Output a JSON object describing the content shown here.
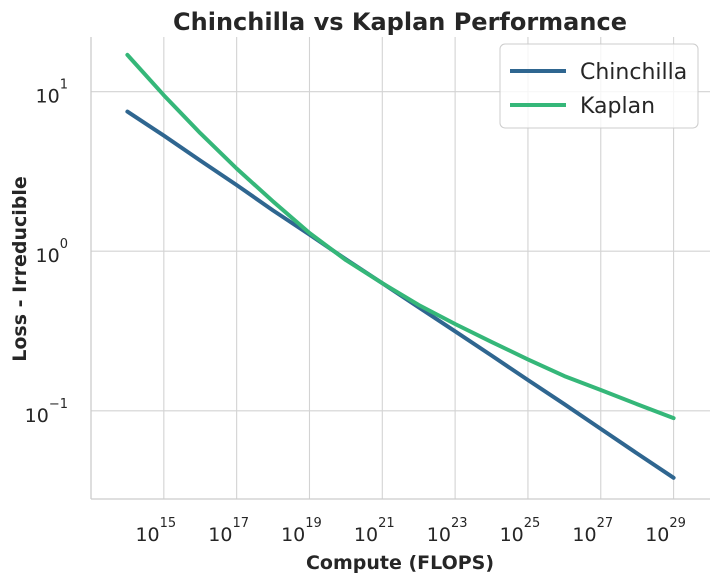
{
  "chart_data": {
    "type": "line",
    "title": "Chinchilla vs Kaplan Performance",
    "xlabel": "Compute (FLOPS)",
    "ylabel": "Loss - Irreducible",
    "x_scale": "log",
    "y_scale": "log",
    "xlim": [
      10000000000000.0,
      1e+30
    ],
    "ylim": [
      0.028,
      22
    ],
    "grid": true,
    "legend_position": "top-right",
    "x_ticks": [
      {
        "base": "10",
        "exp": "15",
        "value": 1000000000000000.0
      },
      {
        "base": "10",
        "exp": "17",
        "value": 1e+17
      },
      {
        "base": "10",
        "exp": "19",
        "value": 1e+19
      },
      {
        "base": "10",
        "exp": "21",
        "value": 1e+21
      },
      {
        "base": "10",
        "exp": "23",
        "value": 1e+23
      },
      {
        "base": "10",
        "exp": "25",
        "value": 1e+25
      },
      {
        "base": "10",
        "exp": "27",
        "value": 1e+27
      },
      {
        "base": "10",
        "exp": "29",
        "value": 1e+29
      }
    ],
    "y_ticks": [
      {
        "base": "10",
        "exp": "1",
        "value": 10
      },
      {
        "base": "10",
        "exp": "0",
        "value": 1
      },
      {
        "base": "10",
        "exp": "−1",
        "value": 0.1
      }
    ],
    "series": [
      {
        "name": "Chinchilla",
        "color": "#2f6690",
        "x": [
          100000000000000.0,
          1000000000000000.0,
          1e+16,
          1e+17,
          1e+18,
          1e+19,
          1e+20,
          1e+21,
          1e+22,
          1e+23,
          1e+24,
          1e+25,
          1e+26,
          1e+27,
          1e+28,
          1e+29
        ],
        "y": [
          7.5,
          5.3,
          3.7,
          2.6,
          1.8,
          1.27,
          0.89,
          0.63,
          0.445,
          0.315,
          0.222,
          0.156,
          0.11,
          0.077,
          0.054,
          0.038
        ]
      },
      {
        "name": "Kaplan",
        "color": "#35b779",
        "x": [
          100000000000000.0,
          1000000000000000.0,
          1e+16,
          1e+17,
          1e+18,
          1e+19,
          1e+20,
          1e+21,
          1e+22,
          1e+23,
          1e+24,
          1e+25,
          1e+26,
          1e+27,
          1e+28,
          1e+29
        ],
        "y": [
          17,
          9.5,
          5.5,
          3.3,
          2.05,
          1.3,
          0.88,
          0.63,
          0.46,
          0.35,
          0.27,
          0.21,
          0.165,
          0.135,
          0.11,
          0.09
        ]
      }
    ]
  }
}
